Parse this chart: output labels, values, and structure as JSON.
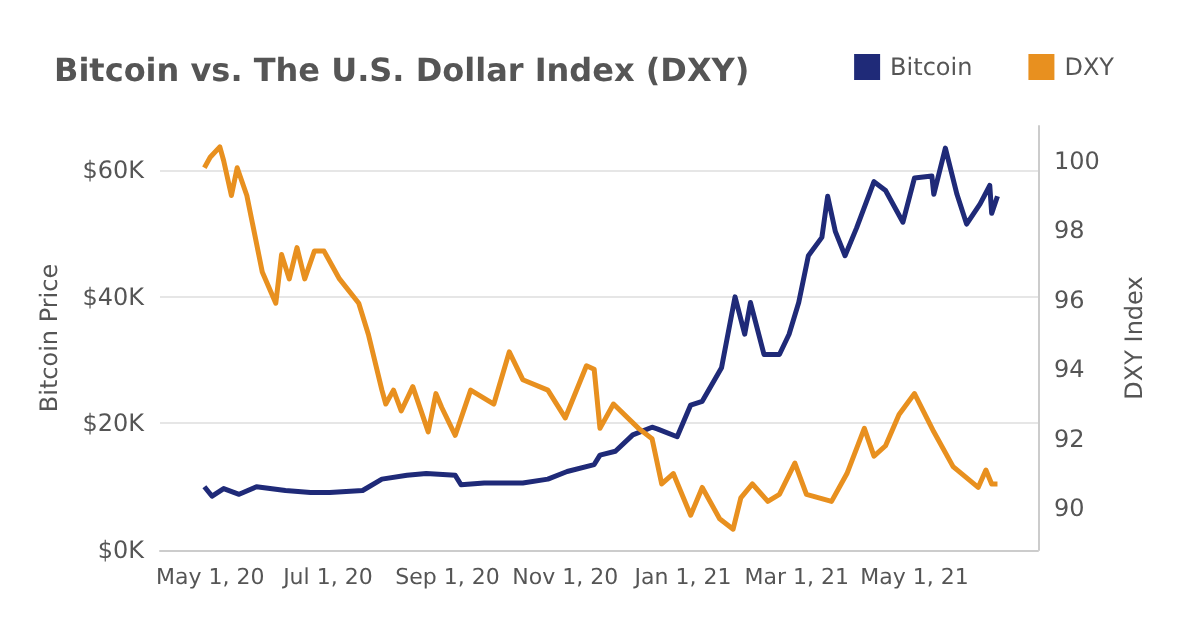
{
  "chart_data": {
    "type": "line",
    "title": "Bitcoin vs. The U.S. Dollar Index (DXY)",
    "ylabel": "Bitcoin Price",
    "y2label": "DXY Index",
    "xlim": [
      "2020-04-05",
      "2021-07-04"
    ],
    "xticks": [
      {
        "value": "2020-05-01",
        "label": "May 1, 20"
      },
      {
        "value": "2020-07-01",
        "label": "Jul 1, 20"
      },
      {
        "value": "2020-09-01",
        "label": "Sep 1, 20"
      },
      {
        "value": "2020-11-01",
        "label": "Nov 1, 20"
      },
      {
        "value": "2021-01-01",
        "label": "Jan 1, 21"
      },
      {
        "value": "2021-03-01",
        "label": "Mar 1, 21"
      },
      {
        "value": "2021-05-01",
        "label": "May 1, 21"
      }
    ],
    "ylim": [
      0,
      67
    ],
    "yticks": [
      {
        "value": 0,
        "label": "$0K"
      },
      {
        "value": 20,
        "label": "$20K"
      },
      {
        "value": 40,
        "label": "$40K"
      },
      {
        "value": 60,
        "label": "$60K"
      }
    ],
    "y2lim": [
      88.8,
      101
    ],
    "y2ticks": [
      90,
      92,
      94,
      96,
      98,
      100
    ],
    "grid": "y",
    "legend": "top right",
    "series": [
      {
        "name": "Bitcoin",
        "color": "#1f2a78",
        "x": [
          "2020-04-28",
          "2020-05-02",
          "2020-05-08",
          "2020-05-16",
          "2020-05-25",
          "2020-06-09",
          "2020-06-22",
          "2020-07-02",
          "2020-07-19",
          "2020-07-29",
          "2020-08-11",
          "2020-08-21",
          "2020-09-05",
          "2020-09-08",
          "2020-09-20",
          "2020-10-10",
          "2020-10-23",
          "2020-11-02",
          "2020-11-16",
          "2020-11-19",
          "2020-11-27",
          "2020-12-06",
          "2020-12-16",
          "2020-12-19",
          "2020-12-29",
          "2021-01-05",
          "2021-01-11",
          "2021-01-21",
          "2021-01-28",
          "2021-02-02",
          "2021-02-05",
          "2021-02-12",
          "2021-02-20",
          "2021-02-25",
          "2021-03-02",
          "2021-03-07",
          "2021-03-14",
          "2021-03-17",
          "2021-03-21",
          "2021-03-26",
          "2021-04-01",
          "2021-04-10",
          "2021-04-16",
          "2021-04-25",
          "2021-05-01",
          "2021-05-10",
          "2021-05-11",
          "2021-05-17",
          "2021-05-23",
          "2021-05-28",
          "2021-06-04",
          "2021-06-09",
          "2021-06-10",
          "2021-06-13"
        ],
        "values": [
          10.0,
          8.5,
          9.7,
          8.8,
          10.0,
          9.4,
          9.1,
          9.1,
          9.4,
          11.2,
          11.8,
          12.1,
          11.8,
          10.3,
          10.6,
          10.6,
          11.2,
          12.4,
          13.5,
          15.0,
          15.6,
          18.2,
          19.4,
          19.1,
          17.9,
          22.9,
          23.5,
          28.8,
          40.0,
          34.1,
          39.1,
          30.9,
          30.9,
          34.1,
          39.1,
          46.5,
          49.4,
          55.9,
          50.3,
          46.5,
          50.9,
          58.2,
          56.8,
          51.8,
          58.8,
          59.1,
          56.2,
          63.5,
          56.2,
          51.5,
          54.7,
          57.6,
          53.2,
          55.9
        ]
      },
      {
        "name": "DXY",
        "color": "#e8901f",
        "axis": "y2",
        "x": [
          "2020-04-28",
          "2020-05-01",
          "2020-05-06",
          "2020-05-08",
          "2020-05-12",
          "2020-05-15",
          "2020-05-20",
          "2020-05-28",
          "2020-06-04",
          "2020-06-07",
          "2020-06-11",
          "2020-06-15",
          "2020-06-19",
          "2020-06-24",
          "2020-06-29",
          "2020-07-07",
          "2020-07-17",
          "2020-07-22",
          "2020-07-29",
          "2020-07-31",
          "2020-08-04",
          "2020-08-08",
          "2020-08-14",
          "2020-08-22",
          "2020-08-26",
          "2020-08-29",
          "2020-09-05",
          "2020-09-13",
          "2020-09-25",
          "2020-10-03",
          "2020-10-10",
          "2020-10-23",
          "2020-11-01",
          "2020-11-12",
          "2020-11-16",
          "2020-11-19",
          "2020-11-26",
          "2020-12-09",
          "2020-12-16",
          "2020-12-21",
          "2020-12-27",
          "2021-01-05",
          "2021-01-11",
          "2021-01-20",
          "2021-01-27",
          "2021-01-31",
          "2021-02-06",
          "2021-02-14",
          "2021-02-20",
          "2021-02-28",
          "2021-03-06",
          "2021-03-19",
          "2021-03-27",
          "2021-04-05",
          "2021-04-10",
          "2021-04-16",
          "2021-04-23",
          "2021-05-01",
          "2021-05-11",
          "2021-05-21",
          "2021-06-03",
          "2021-06-07",
          "2021-06-10",
          "2021-06-13"
        ],
        "values": [
          99.8,
          100.1,
          100.4,
          100.0,
          99.0,
          99.8,
          99.0,
          96.8,
          95.9,
          97.3,
          96.6,
          97.5,
          96.6,
          97.4,
          97.4,
          96.6,
          95.9,
          95.0,
          93.4,
          93.0,
          93.4,
          92.8,
          93.5,
          92.2,
          93.3,
          92.9,
          92.1,
          93.4,
          93.0,
          94.5,
          93.7,
          93.4,
          92.6,
          94.1,
          94.0,
          92.3,
          93.0,
          92.3,
          92.0,
          90.7,
          91.0,
          89.8,
          90.6,
          89.7,
          89.4,
          90.3,
          90.7,
          90.2,
          90.4,
          91.3,
          90.4,
          90.2,
          91.0,
          92.3,
          91.5,
          91.8,
          92.7,
          93.3,
          92.2,
          91.2,
          90.6,
          91.1,
          90.7,
          90.7
        ]
      }
    ]
  }
}
